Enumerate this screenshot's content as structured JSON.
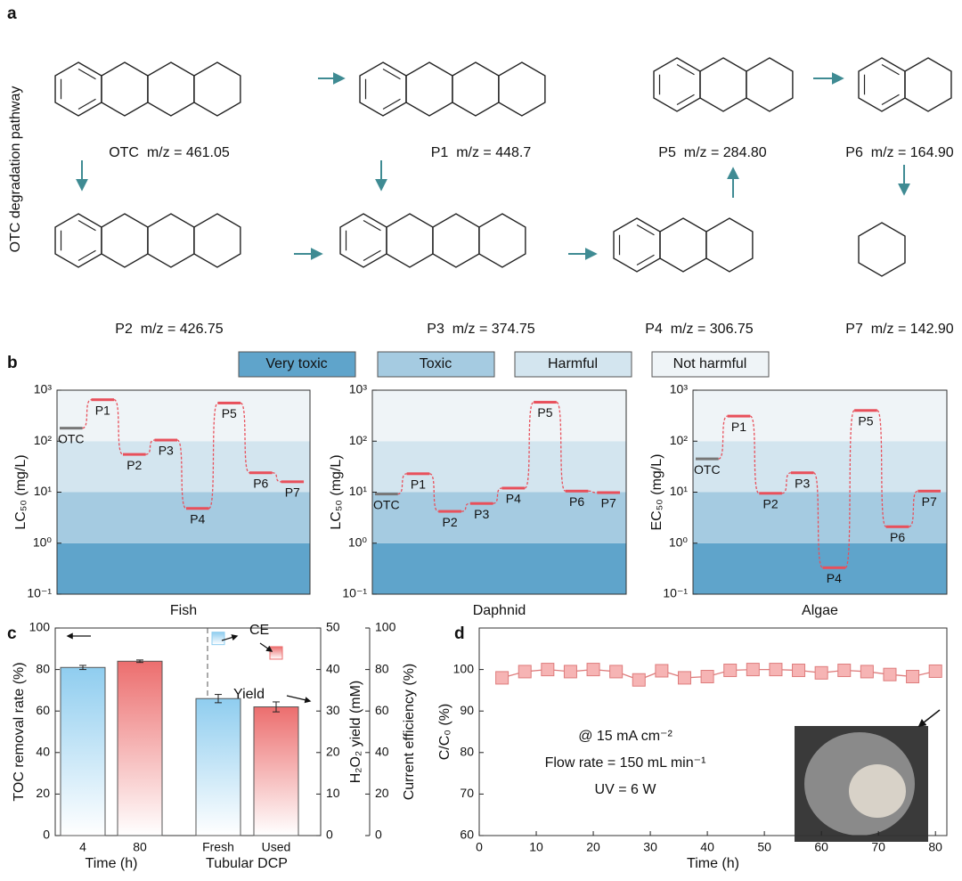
{
  "panels": [
    "a",
    "b",
    "c",
    "d"
  ],
  "pathway": {
    "side_label": "OTC degradation pathway",
    "compounds": [
      "OTC  m/z = 461.05",
      "P1  m/z = 448.7",
      "P5  m/z = 284.80",
      "P6  m/z = 164.90",
      "P2  m/z = 426.75",
      "P3  m/z = 374.75",
      "P4  m/z = 306.75",
      "P7  m/z = 142.90"
    ]
  },
  "toxicity_classes": [
    {
      "name": "Very toxic",
      "color": "#5fa4cb",
      "range": [
        0.1,
        1
      ]
    },
    {
      "name": "Toxic",
      "color": "#a5cbe1",
      "range": [
        1,
        10
      ]
    },
    {
      "name": "Harmful",
      "color": "#d3e5ef",
      "range": [
        10,
        100
      ]
    },
    {
      "name": "Not harmful",
      "color": "#eff4f7",
      "range": [
        100,
        1000
      ]
    }
  ],
  "chart_data": [
    {
      "type": "step",
      "xlabel": "Fish",
      "ylabel": "LC₅₀ (mg/L)",
      "log": true,
      "ylim": [
        0.1,
        1000
      ],
      "yticks": [
        {
          "value": 0.1,
          "label": "10⁻¹"
        },
        {
          "value": 1,
          "label": "10⁰"
        },
        {
          "value": 10,
          "label": "10¹"
        },
        {
          "value": 100,
          "label": "10²"
        },
        {
          "value": 1000,
          "label": "10³"
        }
      ],
      "categories": [
        "OTC",
        "P1",
        "P2",
        "P3",
        "P4",
        "P5",
        "P6",
        "P7"
      ],
      "values": [
        180,
        650,
        55,
        105,
        4.8,
        560,
        24,
        16
      ],
      "colors": [
        "#777777",
        "#e8505b",
        "#e8505b",
        "#e8505b",
        "#e8505b",
        "#e8505b",
        "#e8505b",
        "#e8505b"
      ]
    },
    {
      "type": "step",
      "xlabel": "Daphnid",
      "ylabel": "LC₅₀ (mg/L)",
      "log": true,
      "ylim": [
        0.1,
        1000
      ],
      "yticks": [
        {
          "value": 0.1,
          "label": "10⁻¹"
        },
        {
          "value": 1,
          "label": "10⁰"
        },
        {
          "value": 10,
          "label": "10¹"
        },
        {
          "value": 100,
          "label": "10²"
        },
        {
          "value": 1000,
          "label": "10³"
        }
      ],
      "categories": [
        "OTC",
        "P1",
        "P2",
        "P3",
        "P4",
        "P5",
        "P6",
        "P7"
      ],
      "values": [
        9.2,
        23,
        4.2,
        6,
        12,
        580,
        10.5,
        9.8
      ],
      "colors": [
        "#777777",
        "#e8505b",
        "#e8505b",
        "#e8505b",
        "#e8505b",
        "#e8505b",
        "#e8505b",
        "#e8505b"
      ]
    },
    {
      "type": "step",
      "xlabel": "Algae",
      "ylabel": "EC₅₀ (mg/L)",
      "log": true,
      "ylim": [
        0.1,
        1000
      ],
      "yticks": [
        {
          "value": 0.1,
          "label": "10⁻¹"
        },
        {
          "value": 1,
          "label": "10⁰"
        },
        {
          "value": 10,
          "label": "10¹"
        },
        {
          "value": 100,
          "label": "10²"
        },
        {
          "value": 1000,
          "label": "10³"
        }
      ],
      "categories": [
        "OTC",
        "P1",
        "P2",
        "P3",
        "P4",
        "P5",
        "P6",
        "P7"
      ],
      "values": [
        45,
        310,
        9.5,
        24,
        0.33,
        400,
        2.1,
        10.5
      ],
      "colors": [
        "#777777",
        "#e8505b",
        "#e8505b",
        "#e8505b",
        "#e8505b",
        "#e8505b",
        "#e8505b",
        "#e8505b"
      ]
    },
    {
      "type": "bar",
      "ylabel": "TOC removal rate (%)",
      "ylim": [
        0,
        100
      ],
      "yticks": [
        0,
        20,
        40,
        60,
        80,
        100
      ],
      "y2label": "H₂O₂ yield (mM)",
      "y2lim": [
        0,
        50
      ],
      "y2ticks": [
        0,
        10,
        20,
        30,
        40,
        50
      ],
      "y3label": "Current efficiency (%)",
      "y3lim": [
        0,
        100
      ],
      "y3ticks": [
        0,
        20,
        40,
        60,
        80,
        100
      ],
      "groups": [
        {
          "label": "Time (h)",
          "categories": [
            "4",
            "80"
          ],
          "axis": "y",
          "values": [
            81,
            84
          ],
          "errors": [
            1,
            0.6
          ]
        },
        {
          "label": "Tubular DCP",
          "categories": [
            "Fresh",
            "Used"
          ],
          "axis": "y2",
          "values": [
            33,
            31
          ],
          "errors": [
            1,
            1.2
          ],
          "ce": [
            95,
            88
          ],
          "ce_errors": [
            1,
            1.5
          ]
        }
      ],
      "colors": [
        "#8fcdef",
        "#ec6e6e"
      ],
      "annotations": [
        "CE",
        "Yield"
      ]
    },
    {
      "type": "line",
      "xlabel": "Time (h)",
      "ylabel": "C/C₀ (%)",
      "xlim": [
        0,
        82
      ],
      "xticks": [
        0,
        10,
        20,
        30,
        40,
        50,
        60,
        70,
        80
      ],
      "ylim": [
        60,
        110
      ],
      "yticks": [
        60,
        70,
        80,
        90,
        100
      ],
      "x": [
        4,
        8,
        12,
        16,
        20,
        24,
        28,
        32,
        36,
        40,
        44,
        48,
        52,
        56,
        60,
        64,
        68,
        72,
        76,
        80
      ],
      "values": [
        98,
        99.5,
        100,
        99.5,
        100,
        99.5,
        97.5,
        99.7,
        98,
        98.3,
        99.8,
        100,
        100,
        99.8,
        99.2,
        99.8,
        99.5,
        98.8,
        98.3,
        99.6
      ],
      "color": "#f6b4b4",
      "edge": "#de7c7c",
      "annotations": [
        "@ 15 mA cm⁻²",
        "Flow rate = 150 mL min⁻¹",
        "UV = 6 W"
      ]
    }
  ]
}
